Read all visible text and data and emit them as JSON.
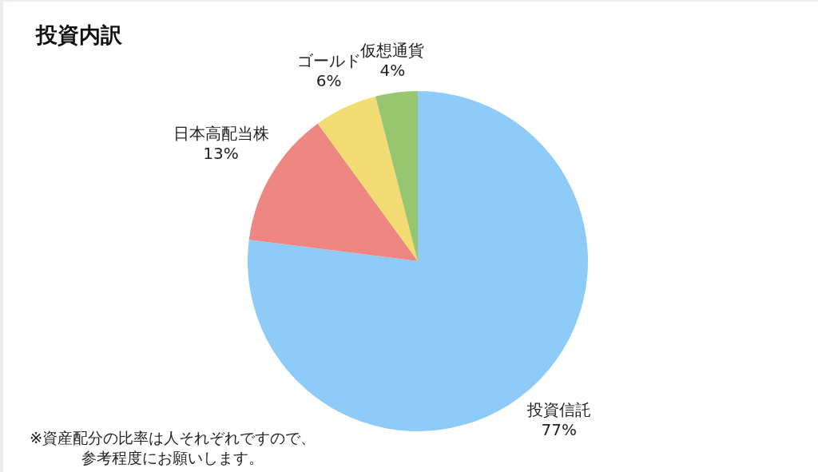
{
  "chart_data": {
    "type": "pie",
    "title": "投資内訳",
    "categories": [
      "投資信託",
      "日本高配当株",
      "ゴールド",
      "仮想通貨"
    ],
    "values": [
      77,
      13,
      6,
      4
    ],
    "colors": [
      "#8fcbf9",
      "#ee8782",
      "#f4dc75",
      "#98c56f"
    ],
    "value_labels": [
      "77%",
      "13%",
      "6%",
      "4%"
    ],
    "annotations": [
      "※資産配分の比率は人それぞれですので、参考程度にお願いします。"
    ]
  }
}
